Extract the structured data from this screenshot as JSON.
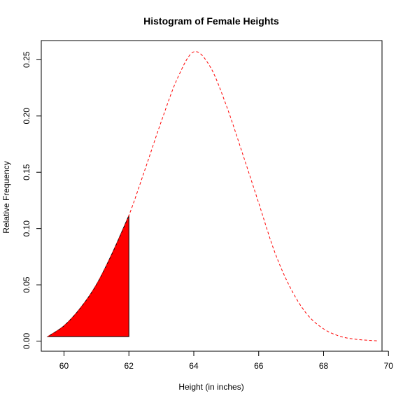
{
  "chart_data": {
    "type": "area",
    "title": "Histogram of Female Heights",
    "xlabel": "Height (in inches)",
    "ylabel": "Relative Frequency",
    "xlim": [
      59.3,
      69.8
    ],
    "ylim": [
      -0.009,
      0.267
    ],
    "x_ticks": [
      "60",
      "62",
      "64",
      "66",
      "68",
      "70"
    ],
    "x_tick_values": [
      60,
      62,
      64,
      66,
      68,
      70
    ],
    "y_ticks": [
      "0.00",
      "0.05",
      "0.10",
      "0.15",
      "0.20",
      "0.25"
    ],
    "y_tick_values": [
      0,
      0.05,
      0.1,
      0.15,
      0.2,
      0.25
    ],
    "grid": false,
    "series": [
      {
        "style": "dashed",
        "color": "#ff0000",
        "x": [
          59.5,
          60.0,
          60.5,
          61.0,
          61.5,
          62.0,
          62.5,
          63.0,
          63.5,
          64.0,
          64.5,
          65.0,
          65.5,
          66.0,
          66.5,
          67.0,
          67.5,
          68.0,
          68.5,
          69.0,
          69.5,
          69.7
        ],
        "y": [
          0.004,
          0.0136,
          0.0292,
          0.0502,
          0.0789,
          0.1116,
          0.1528,
          0.1953,
          0.2337,
          0.257,
          0.244,
          0.2095,
          0.1668,
          0.1227,
          0.0786,
          0.046,
          0.0235,
          0.0109,
          0.0043,
          0.0016,
          0.0005,
          0.0002
        ]
      },
      {
        "style": "filled",
        "color": "#ff0000",
        "x": [
          59.5,
          60.0,
          60.5,
          61.0,
          61.5,
          62.0
        ],
        "y": [
          0.004,
          0.0136,
          0.0292,
          0.0502,
          0.0789,
          0.1116
        ],
        "baseline": 0.004
      }
    ]
  }
}
